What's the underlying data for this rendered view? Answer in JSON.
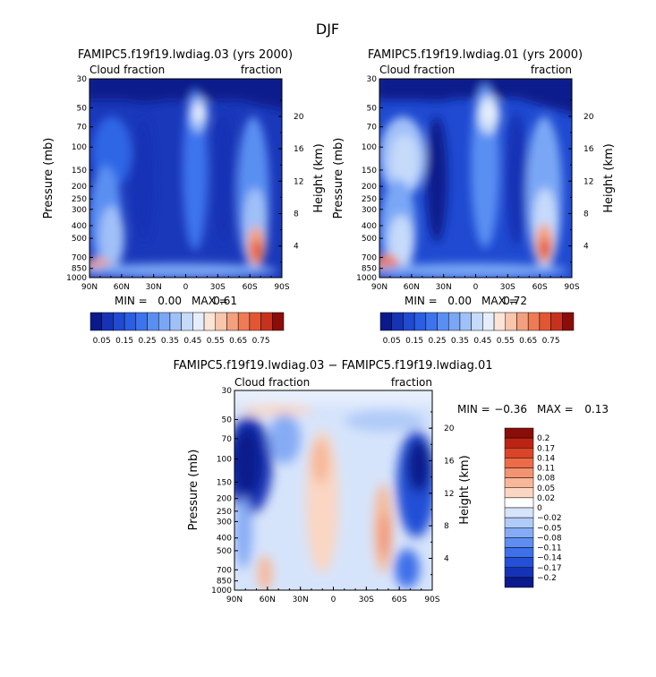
{
  "figure": {
    "title": "DJF",
    "colors": {
      "cloud_scale": [
        "#0a1a8c",
        "#1633b5",
        "#1f4ad1",
        "#2a5fe3",
        "#3d74ee",
        "#5a8ff2",
        "#7aa7f5",
        "#a0c0f8",
        "#c6dafa",
        "#e6eefc",
        "#fde4d6",
        "#f9c5ab",
        "#f4a07e",
        "#ef7b55",
        "#e35634",
        "#c7321d",
        "#8b0d0a"
      ],
      "diff_scale": [
        "#0a1a8c",
        "#1633b5",
        "#2350d6",
        "#3d70ea",
        "#5e8ef1",
        "#86abf5",
        "#b0cbf8",
        "#d6e4fb",
        "#ffffff",
        "#fbd6c2",
        "#f8b798",
        "#f39370",
        "#ec6c48",
        "#db4428",
        "#bb2413",
        "#8b0d0a"
      ]
    }
  },
  "chart_data": [
    {
      "type": "heatmap",
      "title": "FAMIPC5.f19f19.lwdiag.03 (yrs 2000)",
      "left_label": "Cloud fraction",
      "right_label": "fraction",
      "xlabel": "",
      "ylabel": "Pressure (mb)",
      "ylabel_right": "Height (km)",
      "x_ticks": [
        "90N",
        "60N",
        "30N",
        "0",
        "30S",
        "60S",
        "90S"
      ],
      "y_ticks": [
        "30",
        "50",
        "70",
        "100",
        "150",
        "200",
        "250",
        "300",
        "400",
        "500",
        "700",
        "850",
        "1000"
      ],
      "y_ticks_right": [
        "20",
        "16",
        "12",
        "8",
        "4"
      ],
      "stats": {
        "min_label": "MIN =",
        "min": "0.00",
        "max_label": "MAX =",
        "max": "0.61"
      },
      "colorbar_labels": [
        "0.05",
        "0.15",
        "0.25",
        "0.35",
        "0.45",
        "0.55",
        "0.65",
        "0.75"
      ],
      "peak_value": 0.61
    },
    {
      "type": "heatmap",
      "title": "FAMIPC5.f19f19.lwdiag.01 (yrs 2000)",
      "left_label": "Cloud fraction",
      "right_label": "fraction",
      "xlabel": "",
      "ylabel": "Pressure (mb)",
      "ylabel_right": "Height (km)",
      "x_ticks": [
        "90N",
        "60N",
        "30N",
        "0",
        "30S",
        "60S",
        "90S"
      ],
      "y_ticks": [
        "30",
        "50",
        "70",
        "100",
        "150",
        "200",
        "250",
        "300",
        "400",
        "500",
        "700",
        "850",
        "1000"
      ],
      "y_ticks_right": [
        "20",
        "16",
        "12",
        "8",
        "4"
      ],
      "stats": {
        "min_label": "MIN =",
        "min": "0.00",
        "max_label": "MAX =",
        "max": "0.72"
      },
      "colorbar_labels": [
        "0.05",
        "0.15",
        "0.25",
        "0.35",
        "0.45",
        "0.55",
        "0.65",
        "0.75"
      ],
      "peak_value": 0.72
    },
    {
      "type": "heatmap",
      "title": "FAMIPC5.f19f19.lwdiag.03 − FAMIPC5.f19f19.lwdiag.01",
      "left_label": "Cloud fraction",
      "right_label": "fraction",
      "xlabel": "",
      "ylabel": "Pressure (mb)",
      "ylabel_right": "Height (km)",
      "x_ticks": [
        "90N",
        "60N",
        "30N",
        "0",
        "30S",
        "60S",
        "90S"
      ],
      "y_ticks": [
        "30",
        "50",
        "70",
        "100",
        "150",
        "200",
        "250",
        "300",
        "400",
        "500",
        "700",
        "850",
        "1000"
      ],
      "y_ticks_right": [
        "20",
        "16",
        "12",
        "8",
        "4"
      ],
      "stats": {
        "min_label": "MIN =",
        "min": "−0.36",
        "max_label": "MAX =",
        "max": "0.13"
      },
      "colorbar_labels": [
        "0.2",
        "0.17",
        "0.14",
        "0.11",
        "0.08",
        "0.05",
        "0.02",
        "0",
        "−0.02",
        "−0.05",
        "−0.08",
        "−0.11",
        "−0.14",
        "−0.17",
        "−0.2"
      ]
    }
  ]
}
